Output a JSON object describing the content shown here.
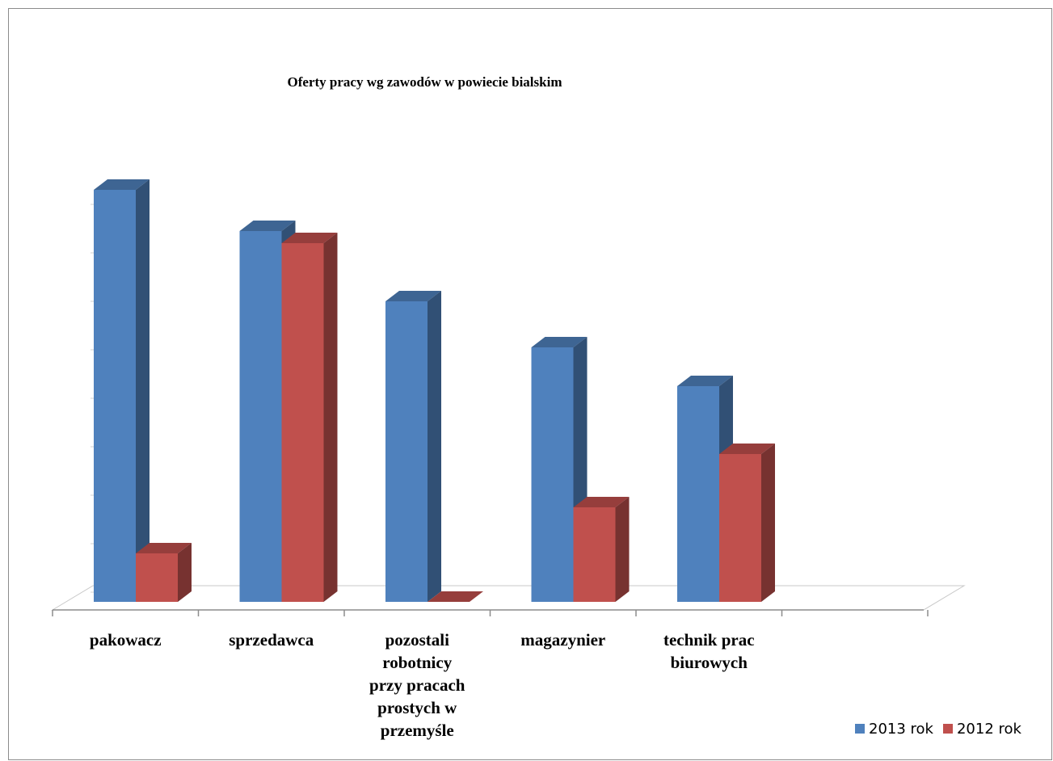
{
  "chart_data": {
    "type": "bar",
    "title": "Oferty pracy wg zawodów w powiecie bialskim",
    "categories": [
      "pakowacz",
      "sprzedawca",
      "pozostali robotnicy przy pracach prostych w przemyśle",
      "magazynier",
      "technik prac biurowych",
      ""
    ],
    "category_display": [
      "pakowacz",
      "sprzedawca",
      "pozostali\nrobotnicy\nprzy pracach\nprostych w\nprzemyśle",
      "magazynier",
      "technik prac\nbiurowych",
      ""
    ],
    "series": [
      {
        "name": "2013 rok",
        "values": [
          85,
          76.5,
          62,
          52.5,
          44.5,
          null
        ],
        "color": "#4f81bd"
      },
      {
        "name": "2012 rok",
        "values": [
          10,
          74,
          0,
          19.5,
          30.5,
          null
        ],
        "color": "#c0504d"
      }
    ],
    "ylim": [
      0,
      100
    ],
    "grid": false,
    "legend_position": "bottom-right",
    "three_d": true
  }
}
